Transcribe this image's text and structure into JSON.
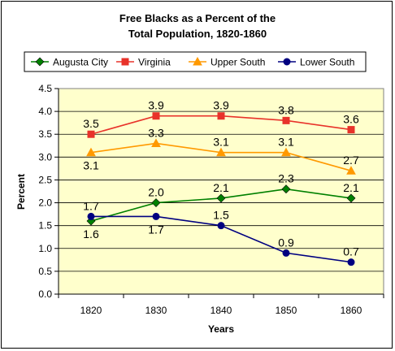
{
  "chart_data": {
    "type": "line",
    "title": [
      "Free Blacks as a Percent of the",
      "Total Population, 1820-1860"
    ],
    "xlabel": "Years",
    "ylabel": "Percent",
    "categories": [
      "1820",
      "1830",
      "1840",
      "1850",
      "1860"
    ],
    "ylim": [
      0,
      4.5
    ],
    "yticks": [
      "0.0",
      "0.5",
      "1.0",
      "1.5",
      "2.0",
      "2.5",
      "3.0",
      "3.5",
      "4.0",
      "4.5"
    ],
    "grid": true,
    "legend_position": "top",
    "series": [
      {
        "name": "Augusta City",
        "values": [
          1.6,
          2.0,
          2.1,
          2.3,
          2.1
        ],
        "labels": [
          "1.6",
          "2.0",
          "2.1",
          "2.3",
          "2.1"
        ],
        "label_pos": [
          "below",
          "above",
          "above",
          "above",
          "above"
        ],
        "color": "#008000",
        "marker": "diamond"
      },
      {
        "name": "Virginia",
        "values": [
          3.5,
          3.9,
          3.9,
          3.8,
          3.6
        ],
        "labels": [
          "3.5",
          "3.9",
          "3.9",
          "3.8",
          "3.6"
        ],
        "label_pos": [
          "above",
          "above",
          "above",
          "above",
          "above"
        ],
        "color": "#e8322a",
        "marker": "square"
      },
      {
        "name": "Upper South",
        "values": [
          3.1,
          3.3,
          3.1,
          3.1,
          2.7
        ],
        "labels": [
          "3.1",
          "3.3",
          "3.1",
          "3.1",
          "2.7"
        ],
        "label_pos": [
          "below",
          "above",
          "above",
          "above",
          "above"
        ],
        "color": "#ff9900",
        "marker": "triangle"
      },
      {
        "name": "Lower South",
        "values": [
          1.7,
          1.7,
          1.5,
          0.9,
          0.7
        ],
        "labels": [
          "1.7",
          "1.7",
          "1.5",
          "0.9",
          "0.7"
        ],
        "label_pos": [
          "above",
          "below",
          "above",
          "above",
          "above"
        ],
        "color": "#000080",
        "marker": "circle"
      }
    ],
    "colors": {
      "plot_background": "#ffffcc",
      "gridline": "#000000"
    }
  }
}
